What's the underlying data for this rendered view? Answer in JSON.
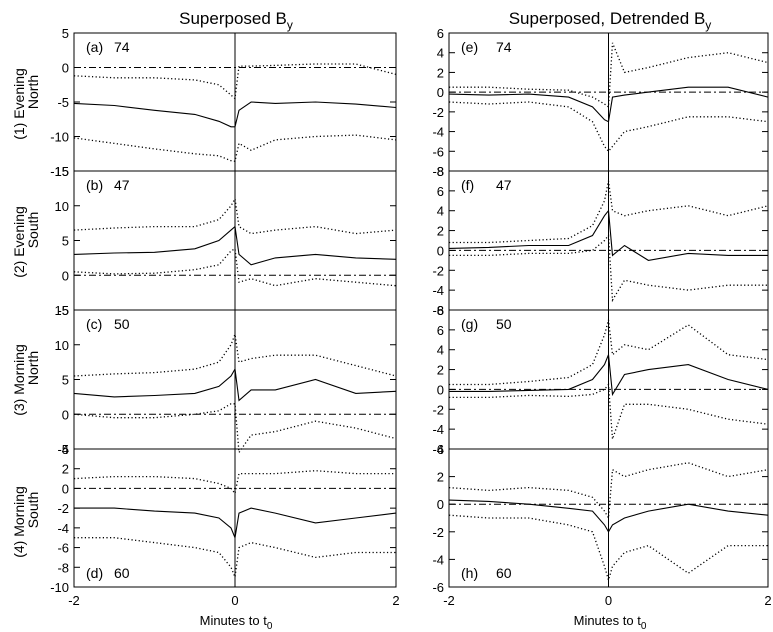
{
  "figure": {
    "left_title": "Superposed B",
    "left_title_sub": "y",
    "right_title": "Superposed, Detrended B",
    "right_title_sub": "y",
    "xlabel": "Minutes to t",
    "xlabel_sub": "0",
    "row_labels": [
      {
        "num": "(1)",
        "line1": "Evening",
        "line2": "North"
      },
      {
        "num": "(2)",
        "line1": "Evening",
        "line2": "South"
      },
      {
        "num": "(3)",
        "line1": "Morning",
        "line2": "North"
      },
      {
        "num": "(4)",
        "line1": "Morning",
        "line2": "South"
      }
    ]
  },
  "chart_data": [
    {
      "type": "line",
      "panel": "(a)",
      "count": "74",
      "col": 0,
      "row": 0,
      "label_pos": "top",
      "ylim": [
        -15,
        5
      ],
      "yticks": [
        5,
        0,
        -5,
        -10,
        -15
      ],
      "xlim": [
        -2,
        2
      ],
      "xticks": [
        -2,
        0,
        2
      ],
      "zero_line": 0,
      "title": "",
      "xlabel": "",
      "ylabel": "",
      "series": [
        {
          "style": "dotted",
          "x": [
            -2,
            -1.5,
            -1,
            -0.5,
            -0.2,
            -0.05,
            0,
            0.05,
            0.2,
            0.5,
            1,
            1.5,
            2
          ],
          "y": [
            -1.2,
            -1.5,
            -1.5,
            -1.8,
            -2.5,
            -4,
            -4.5,
            0.2,
            0.2,
            0.3,
            0.5,
            0.5,
            -1
          ]
        },
        {
          "style": "solid",
          "x": [
            -2,
            -1.5,
            -1,
            -0.5,
            -0.2,
            -0.05,
            0,
            0.05,
            0.2,
            0.5,
            1,
            1.5,
            2
          ],
          "y": [
            -5.2,
            -5.5,
            -6.2,
            -6.8,
            -7.8,
            -8.6,
            -8.6,
            -6.2,
            -5,
            -5.2,
            -5,
            -5.3,
            -5.8
          ]
        },
        {
          "style": "dotted",
          "x": [
            -2,
            -1.5,
            -1,
            -0.5,
            -0.2,
            -0.05,
            0,
            0.05,
            0.2,
            0.5,
            1,
            1.5,
            2
          ],
          "y": [
            -10.2,
            -11,
            -11.8,
            -12.5,
            -12.8,
            -13.5,
            -13.6,
            -11,
            -12,
            -10.5,
            -10,
            -9.8,
            -10.5
          ]
        }
      ]
    },
    {
      "type": "line",
      "panel": "(b)",
      "count": "47",
      "col": 0,
      "row": 1,
      "label_pos": "top",
      "ylim": [
        -5,
        15
      ],
      "yticks": [
        15,
        10,
        5,
        0,
        -5
      ],
      "xlim": [
        -2,
        2
      ],
      "xticks": [
        -2,
        0,
        2
      ],
      "zero_line": 0,
      "title": "",
      "xlabel": "",
      "ylabel": "",
      "series": [
        {
          "style": "dotted",
          "x": [
            -2,
            -1.5,
            -1,
            -0.5,
            -0.2,
            -0.05,
            0,
            0.05,
            0.2,
            0.5,
            1,
            1.5,
            2
          ],
          "y": [
            6.5,
            6.8,
            7,
            7,
            8,
            10,
            11,
            7,
            6,
            6.5,
            7,
            6,
            6.5
          ]
        },
        {
          "style": "solid",
          "x": [
            -2,
            -1.5,
            -1,
            -0.5,
            -0.2,
            -0.05,
            0,
            0.05,
            0.2,
            0.5,
            1,
            1.5,
            2
          ],
          "y": [
            3,
            3.2,
            3.3,
            3.8,
            5,
            6.5,
            7,
            3,
            1.5,
            2.5,
            3,
            2.5,
            2.3
          ]
        },
        {
          "style": "dotted",
          "x": [
            -2,
            -1.5,
            -1,
            -0.5,
            -0.2,
            -0.05,
            0,
            0.05,
            0.2,
            0.5,
            1,
            1.5,
            2
          ],
          "y": [
            0.5,
            0.2,
            0.3,
            0.8,
            1.5,
            3.5,
            3.8,
            -1,
            -0.5,
            -1.5,
            -0.5,
            -1,
            -1.5
          ]
        }
      ]
    },
    {
      "type": "line",
      "panel": "(c)",
      "count": "50",
      "col": 0,
      "row": 2,
      "label_pos": "top",
      "ylim": [
        -5,
        15
      ],
      "yticks": [
        15,
        10,
        5,
        0,
        -5
      ],
      "xlim": [
        -2,
        2
      ],
      "xticks": [
        -2,
        0,
        2
      ],
      "zero_line": 0,
      "title": "",
      "xlabel": "",
      "ylabel": "",
      "series": [
        {
          "style": "dotted",
          "x": [
            -2,
            -1.5,
            -1,
            -0.5,
            -0.2,
            -0.05,
            0,
            0.05,
            0.2,
            0.5,
            1,
            1.5,
            2
          ],
          "y": [
            5.5,
            5.8,
            6,
            6.5,
            7.5,
            10,
            11.5,
            7.5,
            8,
            8.5,
            8.5,
            7,
            5.5
          ]
        },
        {
          "style": "solid",
          "x": [
            -2,
            -1.5,
            -1,
            -0.5,
            -0.2,
            -0.05,
            0,
            0.05,
            0.2,
            0.5,
            1,
            1.5,
            2
          ],
          "y": [
            3,
            2.5,
            2.7,
            3,
            4,
            5.5,
            6.5,
            2,
            3.5,
            3.5,
            5,
            3,
            3.3
          ]
        },
        {
          "style": "dotted",
          "x": [
            -2,
            -1.5,
            -1,
            -0.5,
            -0.2,
            -0.05,
            0,
            0.05,
            0.2,
            0.5,
            1,
            1.5,
            2
          ],
          "y": [
            0,
            -0.5,
            -0.5,
            0,
            0.5,
            1.5,
            1.5,
            -5.5,
            -3,
            -2.5,
            -1,
            -2,
            -3.5
          ]
        }
      ]
    },
    {
      "type": "line",
      "panel": "(d)",
      "count": "60",
      "col": 0,
      "row": 3,
      "label_pos": "bottom",
      "ylim": [
        -10,
        4
      ],
      "yticks": [
        4,
        2,
        0,
        -2,
        -4,
        -6,
        -8,
        -10
      ],
      "xlim": [
        -2,
        2
      ],
      "xticks": [
        -2,
        0,
        2
      ],
      "zero_line": 0,
      "title": "",
      "xlabel": "",
      "ylabel": "",
      "series": [
        {
          "style": "dotted",
          "x": [
            -2,
            -1.5,
            -1,
            -0.5,
            -0.2,
            -0.05,
            0,
            0.05,
            0.2,
            0.5,
            1,
            1.5,
            2
          ],
          "y": [
            1,
            1.2,
            1.2,
            1,
            0.5,
            0,
            -0.5,
            1.5,
            1.5,
            1.5,
            1.8,
            1.5,
            1.5
          ]
        },
        {
          "style": "solid",
          "x": [
            -2,
            -1.5,
            -1,
            -0.5,
            -0.2,
            -0.05,
            0,
            0.05,
            0.2,
            0.5,
            1,
            1.5,
            2
          ],
          "y": [
            -2,
            -2,
            -2.3,
            -2.5,
            -3,
            -4,
            -5,
            -2.5,
            -2,
            -2.5,
            -3.5,
            -3,
            -2.5
          ]
        },
        {
          "style": "dotted",
          "x": [
            -2,
            -1.5,
            -1,
            -0.5,
            -0.2,
            -0.05,
            0,
            0.05,
            0.2,
            0.5,
            1,
            1.5,
            2
          ],
          "y": [
            -5,
            -5,
            -5.5,
            -6,
            -6.5,
            -8,
            -9,
            -6,
            -5.5,
            -6,
            -7,
            -6.5,
            -6.5
          ]
        }
      ]
    },
    {
      "type": "line",
      "panel": "(e)",
      "count": "74",
      "col": 1,
      "row": 0,
      "label_pos": "top",
      "ylim": [
        -8,
        6
      ],
      "yticks": [
        6,
        4,
        2,
        0,
        -2,
        -4,
        -6,
        -8
      ],
      "xlim": [
        -2,
        2
      ],
      "xticks": [
        -2,
        0,
        2
      ],
      "zero_line": 0,
      "title": "",
      "xlabel": "",
      "ylabel": "",
      "series": [
        {
          "style": "dotted",
          "x": [
            -2,
            -1.5,
            -1,
            -0.5,
            -0.2,
            -0.05,
            0,
            0.05,
            0.2,
            0.5,
            1,
            1.5,
            2
          ],
          "y": [
            0.5,
            0.5,
            0.3,
            0.2,
            -0.5,
            -1.2,
            -1.5,
            5,
            2,
            2.5,
            3.5,
            4,
            3
          ]
        },
        {
          "style": "solid",
          "x": [
            -2,
            -1.5,
            -1,
            -0.5,
            -0.2,
            -0.05,
            0,
            0.05,
            0.2,
            0.5,
            1,
            1.5,
            2
          ],
          "y": [
            -0.2,
            -0.3,
            -0.2,
            -0.5,
            -1.5,
            -2.8,
            -3,
            -0.5,
            -0.3,
            0,
            0.5,
            0.5,
            -0.5
          ]
        },
        {
          "style": "dotted",
          "x": [
            -2,
            -1.5,
            -1,
            -0.5,
            -0.2,
            -0.05,
            0,
            0.05,
            0.2,
            0.5,
            1,
            1.5,
            2
          ],
          "y": [
            -1,
            -1.2,
            -1,
            -1.5,
            -3,
            -5.5,
            -6,
            -5.5,
            -4,
            -3.5,
            -2.5,
            -2.5,
            -3
          ]
        }
      ]
    },
    {
      "type": "line",
      "panel": "(f)",
      "count": "47",
      "col": 1,
      "row": 1,
      "label_pos": "top",
      "ylim": [
        -6,
        8
      ],
      "yticks": [
        8,
        6,
        4,
        2,
        0,
        -2,
        -4,
        -6
      ],
      "xlim": [
        -2,
        2
      ],
      "xticks": [
        -2,
        0,
        2
      ],
      "zero_line": 0,
      "title": "",
      "xlabel": "",
      "ylabel": "",
      "series": [
        {
          "style": "dotted",
          "x": [
            -2,
            -1.5,
            -1,
            -0.5,
            -0.2,
            -0.05,
            0,
            0.05,
            0.2,
            0.5,
            1,
            1.5,
            2
          ],
          "y": [
            0.8,
            0.8,
            1,
            1.2,
            2.5,
            5,
            7,
            4,
            3.5,
            4,
            4.5,
            3.5,
            4.5
          ]
        },
        {
          "style": "solid",
          "x": [
            -2,
            -1.5,
            -1,
            -0.5,
            -0.2,
            -0.05,
            0,
            0.05,
            0.2,
            0.5,
            1,
            1.5,
            2
          ],
          "y": [
            0.2,
            0.3,
            0.5,
            0.5,
            1.5,
            3.5,
            4,
            -0.5,
            0.5,
            -1,
            -0.3,
            -0.5,
            -0.5
          ]
        },
        {
          "style": "dotted",
          "x": [
            -2,
            -1.5,
            -1,
            -0.5,
            -0.2,
            -0.05,
            0,
            0.05,
            0.2,
            0.5,
            1,
            1.5,
            2
          ],
          "y": [
            -0.5,
            -0.5,
            -0.3,
            -0.3,
            0,
            1,
            1.5,
            -5,
            -3,
            -3.5,
            -4,
            -3.5,
            -3.5
          ]
        }
      ]
    },
    {
      "type": "line",
      "panel": "(g)",
      "count": "50",
      "col": 1,
      "row": 2,
      "label_pos": "top",
      "ylim": [
        -6,
        8
      ],
      "yticks": [
        8,
        6,
        4,
        2,
        0,
        -2,
        -4,
        -6
      ],
      "xlim": [
        -2,
        2
      ],
      "xticks": [
        -2,
        0,
        2
      ],
      "zero_line": 0,
      "title": "",
      "xlabel": "",
      "ylabel": "",
      "series": [
        {
          "style": "dotted",
          "x": [
            -2,
            -1.5,
            -1,
            -0.5,
            -0.2,
            -0.05,
            0,
            0.05,
            0.2,
            0.5,
            1,
            1.5,
            2
          ],
          "y": [
            0.5,
            0.5,
            0.8,
            1.2,
            2.5,
            5.5,
            7,
            3.5,
            4.5,
            4,
            6.5,
            3.5,
            3
          ]
        },
        {
          "style": "solid",
          "x": [
            -2,
            -1.5,
            -1,
            -0.5,
            -0.2,
            -0.05,
            0,
            0.05,
            0.2,
            0.5,
            1,
            1.5,
            2
          ],
          "y": [
            -0.2,
            -0.2,
            -0.1,
            0,
            1,
            2.5,
            3.5,
            -0.5,
            1.5,
            2,
            2.5,
            1,
            0
          ]
        },
        {
          "style": "dotted",
          "x": [
            -2,
            -1.5,
            -1,
            -0.5,
            -0.2,
            -0.05,
            0,
            0.05,
            0.2,
            0.5,
            1,
            1.5,
            2
          ],
          "y": [
            -0.8,
            -0.8,
            -0.6,
            -0.7,
            -0.5,
            0,
            0.5,
            -5,
            -1.5,
            -1.5,
            -2,
            -3,
            -3.5
          ]
        }
      ]
    },
    {
      "type": "line",
      "panel": "(h)",
      "count": "60",
      "col": 1,
      "row": 3,
      "label_pos": "bottom",
      "ylim": [
        -6,
        4
      ],
      "yticks": [
        4,
        2,
        0,
        -2,
        -4,
        -6
      ],
      "xlim": [
        -2,
        2
      ],
      "xticks": [
        -2,
        0,
        2
      ],
      "zero_line": 0,
      "title": "",
      "xlabel": "",
      "ylabel": "",
      "series": [
        {
          "style": "dotted",
          "x": [
            -2,
            -1.5,
            -1,
            -0.5,
            -0.2,
            -0.05,
            0,
            0.05,
            0.2,
            0.5,
            1,
            1.5,
            2
          ],
          "y": [
            1.2,
            1,
            1.2,
            1,
            0.5,
            -0.5,
            -1,
            2.5,
            2,
            2.5,
            3,
            2,
            2.5
          ]
        },
        {
          "style": "solid",
          "x": [
            -2,
            -1.5,
            -1,
            -0.5,
            -0.2,
            -0.05,
            0,
            0.05,
            0.2,
            0.5,
            1,
            1.5,
            2
          ],
          "y": [
            0.3,
            0.2,
            0,
            -0.3,
            -0.5,
            -1.5,
            -2,
            -1.5,
            -1,
            -0.5,
            0,
            -0.5,
            -0.8
          ]
        },
        {
          "style": "dotted",
          "x": [
            -2,
            -1.5,
            -1,
            -0.5,
            -0.2,
            -0.05,
            0,
            0.05,
            0.2,
            0.5,
            1,
            1.5,
            2
          ],
          "y": [
            -0.8,
            -1,
            -1,
            -1.5,
            -2,
            -4.5,
            -5.5,
            -4.5,
            -3.5,
            -3,
            -5,
            -3,
            -3
          ]
        }
      ]
    }
  ]
}
